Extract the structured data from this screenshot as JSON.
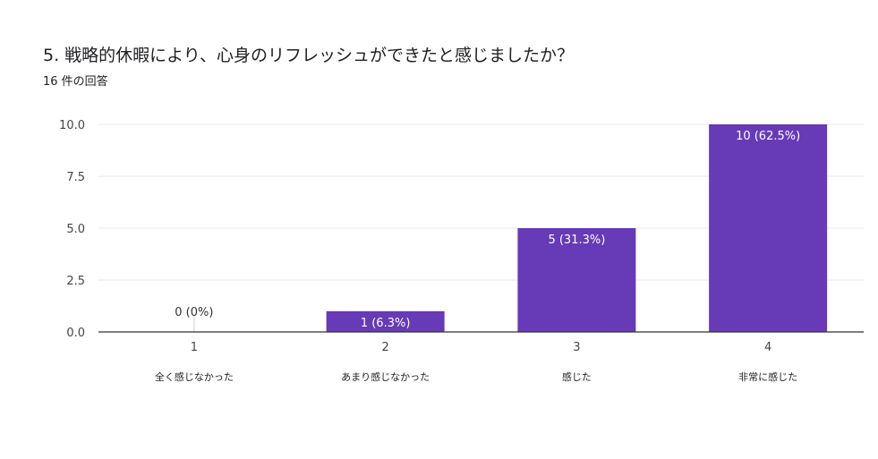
{
  "question": {
    "title": "5. 戦略的休暇により、心身のリフレッシュができたと感じましたか？",
    "response_count": "16 件の回答"
  },
  "chart_data": {
    "type": "bar",
    "categories": [
      "1",
      "2",
      "3",
      "4"
    ],
    "category_labels": [
      "全く感じなかった",
      "あまり感じなかった",
      "感じた",
      "非常に感じた"
    ],
    "values": [
      0,
      1,
      5,
      10
    ],
    "data_labels": [
      "0 (0%)",
      "1 (6.3%)",
      "5 (31.3%)",
      "10 (62.5%)"
    ],
    "ylim": [
      0,
      10
    ],
    "yticks": [
      "0.0",
      "2.5",
      "5.0",
      "7.5",
      "10.0"
    ],
    "grid": true,
    "bar_color": "#673ab7",
    "title": "",
    "xlabel": "",
    "ylabel": ""
  }
}
